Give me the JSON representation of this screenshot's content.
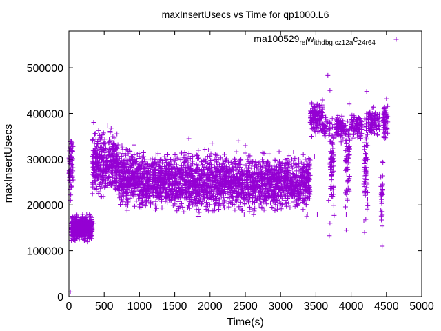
{
  "chart_data": {
    "type": "scatter",
    "title": "maxInsertUsecs vs Time for qp1000.L6",
    "xlabel": "Time(s)",
    "ylabel": "maxInsertUsecs",
    "xlim": [
      0,
      5000
    ],
    "ylim": [
      0,
      580000
    ],
    "x_ticks": [
      0,
      500,
      1000,
      1500,
      2000,
      2500,
      3000,
      3500,
      4000,
      4500,
      5000
    ],
    "y_ticks": [
      0,
      100000,
      200000,
      300000,
      400000,
      500000
    ],
    "x_tick_labels": [
      "0",
      "500",
      "1000",
      "1500",
      "2000",
      "2500",
      "3000",
      "3500",
      "4000",
      "4500",
      "5000"
    ],
    "y_tick_labels": [
      "0",
      "100000",
      "200000",
      "300000",
      "400000",
      "500000"
    ],
    "grid": false,
    "legend_position": "top-right",
    "marker": "plus",
    "series_color": "#9400d3",
    "series": [
      {
        "name_parts": [
          "ma100529",
          "rel",
          "w",
          "ithdbg.cz12a",
          "c",
          "24r64"
        ],
        "clusters": [
          {
            "x": [
              0,
              60
            ],
            "y": [
              200000,
              370000
            ],
            "n": 70
          },
          {
            "x": [
              30,
              330
            ],
            "y": [
              115000,
              185000
            ],
            "n": 520
          },
          {
            "x": [
              330,
              700
            ],
            "y": [
              200000,
              390000
            ],
            "n": 380
          },
          {
            "x": [
              700,
              1000
            ],
            "y": [
              180000,
              340000
            ],
            "n": 350
          },
          {
            "x": [
              1000,
              3420
            ],
            "y": [
              170000,
              330000
            ],
            "n": 2400
          },
          {
            "x": [
              3420,
              3600
            ],
            "y": [
              340000,
              440000
            ],
            "n": 140
          },
          {
            "x": [
              3600,
              3700
            ],
            "y": [
              340000,
              400000
            ],
            "n": 40
          },
          {
            "x": [
              3700,
              3760
            ],
            "y": [
              130000,
              450000
            ],
            "n": 70
          },
          {
            "x": [
              3780,
              3900
            ],
            "y": [
              330000,
              410000
            ],
            "n": 80
          },
          {
            "x": [
              3920,
              3980
            ],
            "y": [
              140000,
              450000
            ],
            "n": 70
          },
          {
            "x": [
              4000,
              4160
            ],
            "y": [
              330000,
              410000
            ],
            "n": 90
          },
          {
            "x": [
              4180,
              4240
            ],
            "y": [
              140000,
              445000
            ],
            "n": 70
          },
          {
            "x": [
              4240,
              4400
            ],
            "y": [
              340000,
              420000
            ],
            "n": 90
          },
          {
            "x": [
              4420,
              4450
            ],
            "y": [
              130000,
              300000
            ],
            "n": 30
          },
          {
            "x": [
              4450,
              4520
            ],
            "y": [
              320000,
              440000
            ],
            "n": 60
          }
        ],
        "points": [
          [
            20,
            10000
          ],
          [
            3670,
            483000
          ],
          [
            4440,
            110000
          ],
          [
            4450,
            293000
          ],
          [
            4440,
            295000
          ],
          [
            3370,
            175000
          ],
          [
            3380,
            180000
          ],
          [
            3690,
            133000
          ],
          [
            3930,
            145000
          ],
          [
            4190,
            140000
          ],
          [
            1700,
            345000
          ],
          [
            2030,
            335000
          ],
          [
            2400,
            340000
          ],
          [
            2500,
            330000
          ],
          [
            3480,
            305000
          ],
          [
            310,
            162000
          ],
          [
            350,
            160000
          ],
          [
            3520,
            180000
          ],
          [
            3700,
            450000
          ],
          [
            4220,
            448000
          ],
          [
            3680,
            210000
          ],
          [
            3700,
            160000
          ],
          [
            3930,
            180000
          ],
          [
            4180,
            165000
          ],
          [
            4440,
            178000
          ]
        ]
      }
    ]
  }
}
